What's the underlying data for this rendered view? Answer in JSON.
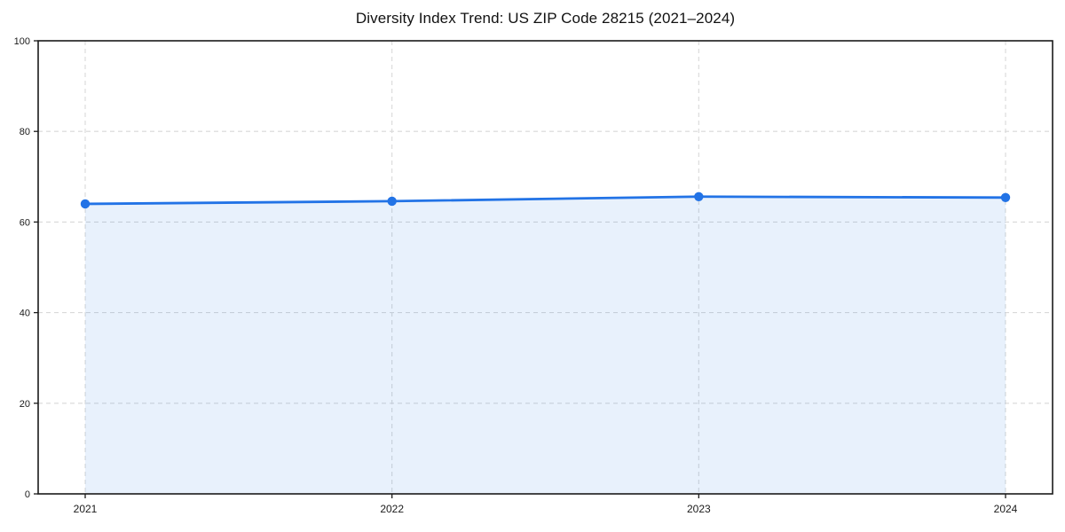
{
  "chart_data": {
    "type": "line",
    "style": "area-filled line with circular markers",
    "title": "Diversity Index Trend: US ZIP Code 28215 (2021–2024)",
    "categories": [
      "2021",
      "2022",
      "2023",
      "2024"
    ],
    "series": [
      {
        "name": "Diversity Index",
        "values": [
          64.0,
          64.6,
          65.6,
          65.4
        ]
      }
    ],
    "xlabel": "",
    "ylabel": "",
    "ylim": [
      0,
      100
    ],
    "yticks": [
      0,
      20,
      40,
      60,
      80,
      100
    ],
    "grid": "dashed, both axes",
    "legend_position": "none",
    "colors": {
      "line": "#2273e6",
      "marker": "#2273e6",
      "fill": "rgba(34, 115, 230, 0.10)",
      "grid": "#d9d9d9",
      "spine": "#1a1a1a",
      "tick_label": "#1a1a1a",
      "background": "#ffffff"
    }
  }
}
